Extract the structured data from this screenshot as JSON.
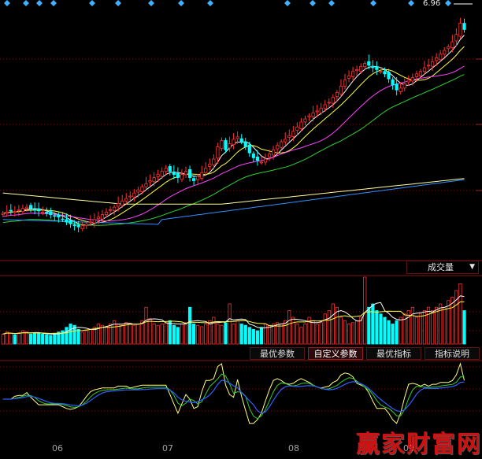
{
  "price_marker": "6.96",
  "volume_dropdown": {
    "label": "成交量",
    "arrow": "▼"
  },
  "buttons": [
    {
      "label": "最优参数",
      "name": "best-params-button"
    },
    {
      "label": "自定义参数",
      "name": "custom-params-button",
      "active": true
    },
    {
      "label": "最优指标",
      "name": "best-indicator-button"
    },
    {
      "label": "指标说明",
      "name": "indicator-help-button"
    }
  ],
  "months": [
    "06",
    "07",
    "08",
    "09"
  ],
  "watermark": "赢家财富网",
  "colors": {
    "up": "#ff3030",
    "down": "#00ffff",
    "ma5": "#ffffff",
    "ma10": "#ffff40",
    "ma20": "#ff40ff",
    "ma30": "#30d030",
    "ma60": "#3090ff",
    "ma120": "#ffffa0",
    "grid": "#7a1010",
    "osc1": "#ffff80",
    "osc2": "#30d030",
    "osc3": "#3060ff"
  },
  "chart_data": {
    "type": "candlestick",
    "price_marker_value": 6.96,
    "n_bars": 117,
    "months": [
      "06",
      "07",
      "08",
      "09"
    ],
    "close": [
      3.72,
      3.74,
      3.76,
      3.75,
      3.78,
      3.8,
      3.82,
      3.8,
      3.78,
      3.76,
      3.74,
      3.72,
      3.7,
      3.68,
      3.66,
      3.62,
      3.58,
      3.55,
      3.52,
      3.5,
      3.52,
      3.55,
      3.58,
      3.62,
      3.66,
      3.7,
      3.74,
      3.78,
      3.82,
      3.88,
      3.92,
      3.96,
      4.0,
      4.05,
      4.1,
      4.15,
      4.2,
      4.25,
      4.3,
      4.35,
      4.4,
      4.45,
      4.4,
      4.35,
      4.3,
      4.35,
      4.4,
      4.3,
      4.25,
      4.32,
      4.38,
      4.45,
      4.52,
      4.6,
      4.8,
      4.9,
      4.75,
      4.85,
      4.92,
      4.96,
      4.88,
      4.8,
      4.7,
      4.62,
      4.58,
      4.55,
      4.6,
      4.68,
      4.75,
      4.82,
      4.88,
      4.92,
      4.98,
      5.05,
      5.12,
      5.2,
      5.25,
      5.3,
      5.35,
      5.38,
      5.42,
      5.48,
      5.52,
      5.6,
      5.68,
      5.78,
      5.88,
      5.95,
      6.02,
      6.05,
      6.1,
      6.15,
      6.12,
      6.08,
      6.05,
      6.02,
      5.98,
      5.9,
      5.8,
      5.72,
      5.75,
      5.82,
      5.88,
      5.92,
      5.98,
      6.02,
      6.08,
      6.12,
      6.18,
      6.24,
      6.3,
      6.36,
      6.42,
      6.5,
      6.62,
      6.8,
      6.7
    ],
    "volume_relative": [
      0.15,
      0.18,
      0.16,
      0.14,
      0.17,
      0.2,
      0.18,
      0.15,
      0.16,
      0.17,
      0.15,
      0.14,
      0.13,
      0.16,
      0.18,
      0.2,
      0.25,
      0.3,
      0.28,
      0.22,
      0.18,
      0.2,
      0.22,
      0.25,
      0.3,
      0.28,
      0.26,
      0.3,
      0.35,
      0.3,
      0.28,
      0.32,
      0.3,
      0.28,
      0.3,
      0.35,
      0.55,
      0.38,
      0.3,
      0.28,
      0.3,
      0.32,
      0.35,
      0.28,
      0.25,
      0.3,
      0.32,
      0.55,
      0.3,
      0.28,
      0.26,
      0.3,
      0.35,
      0.4,
      0.3,
      0.28,
      0.32,
      0.6,
      0.3,
      0.35,
      0.3,
      0.28,
      0.25,
      0.22,
      0.2,
      0.25,
      0.3,
      0.28,
      0.3,
      0.32,
      0.3,
      0.35,
      0.5,
      0.4,
      0.3,
      0.25,
      0.3,
      0.4,
      0.35,
      0.3,
      0.32,
      0.45,
      0.5,
      0.6,
      0.55,
      0.4,
      0.35,
      0.3,
      0.32,
      0.35,
      0.4,
      1.0,
      0.55,
      0.6,
      0.5,
      0.45,
      0.4,
      0.35,
      0.3,
      0.35,
      0.4,
      0.45,
      0.5,
      0.55,
      0.4,
      0.45,
      0.5,
      0.55,
      0.5,
      0.55,
      0.6,
      0.55,
      0.65,
      0.7,
      0.8,
      0.9,
      0.5
    ]
  }
}
